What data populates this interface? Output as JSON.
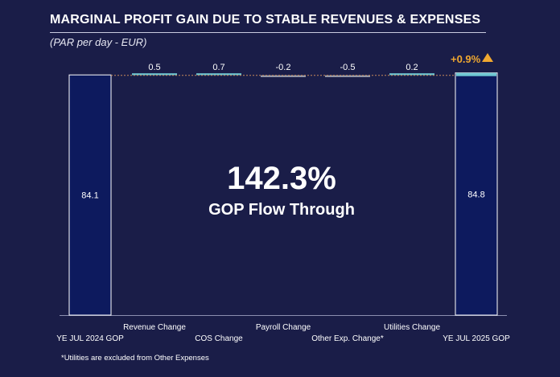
{
  "title": "MARGINAL PROFIT GAIN DUE TO STABLE REVENUES &  EXPENSES",
  "subtitle": "(PAR per day - EUR)",
  "footnote": "*Utilities are excluded from Other Expenses",
  "highlight": {
    "value": "142.3%",
    "label": "GOP Flow Through"
  },
  "change_badge": "+0.9%",
  "colors": {
    "background": "#1a1d48",
    "total_bar": "#0d1a5e",
    "total_bar_border": "#ffffff",
    "increase_bar": "#6fc7d2",
    "decrease_bar": "#9aa0b0",
    "badge": "#f0a830",
    "connector": "#c88a5a"
  },
  "chart_data": {
    "type": "bar",
    "subtype": "waterfall",
    "title": "MARGINAL PROFIT GAIN DUE TO STABLE REVENUES &  EXPENSES",
    "subtitle": "(PAR per day - EUR)",
    "categories": [
      "YE JUL 2024 GOP",
      "Revenue Change",
      "COS Change",
      "Payroll Change",
      "Other Exp. Change*",
      "Utilities Change",
      "YE JUL 2025 GOP"
    ],
    "values": [
      84.1,
      0.5,
      0.7,
      -0.2,
      -0.5,
      0.2,
      84.8
    ],
    "value_labels": [
      "84.1",
      "0.5",
      "0.7",
      "-0.2",
      "-0.5",
      "0.2",
      "84.8"
    ],
    "kinds": [
      "total",
      "delta",
      "delta",
      "delta",
      "delta",
      "delta",
      "total"
    ],
    "ylim": [
      0,
      85
    ],
    "grid": false,
    "legend": "none",
    "xlabel": "",
    "ylabel": ""
  }
}
